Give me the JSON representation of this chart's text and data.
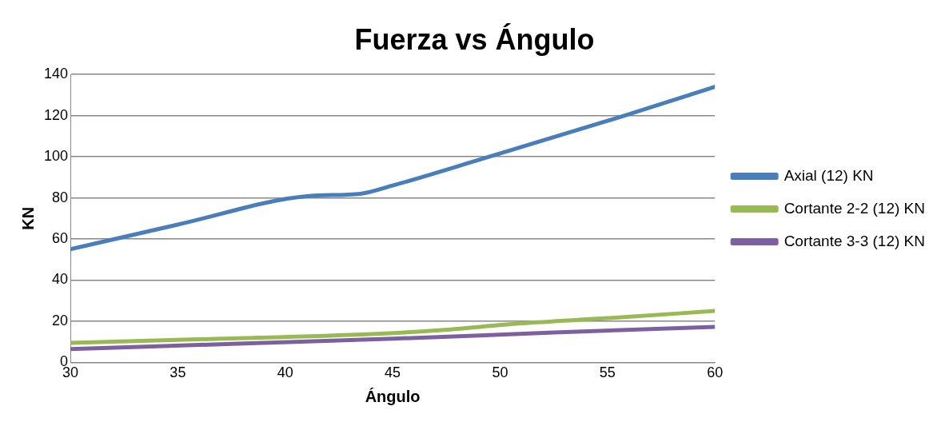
{
  "chart_data": {
    "type": "line",
    "title": "Fuerza vs Ángulo",
    "xlabel": "Ángulo",
    "ylabel": "KN",
    "xlim": [
      30,
      60
    ],
    "xticks": [
      30,
      35,
      40,
      45,
      50,
      55,
      60
    ],
    "ylim": [
      0,
      140
    ],
    "yticks": [
      0,
      20,
      40,
      60,
      80,
      100,
      120,
      140
    ],
    "grid": "y",
    "legend": "right",
    "marker": "none",
    "line_style": "solid",
    "series": [
      {
        "name": "Axial (12) KN",
        "color": "#4a7ebb",
        "x": [
          30,
          35,
          41,
          43.5,
          45,
          49.3,
          55.8,
          60
        ],
        "values": [
          55,
          67,
          80.8,
          82,
          86,
          99.4,
          120,
          134
        ]
      },
      {
        "name": "Cortante 2-2 (12) KN",
        "color": "#98b954",
        "x": [
          30,
          37,
          44,
          47,
          51,
          55,
          60
        ],
        "values": [
          9.5,
          11.5,
          13.8,
          15.5,
          19,
          21.5,
          25
        ]
      },
      {
        "name": "Cortante 3-3 (12) KN",
        "color": "#7d60a0",
        "x": [
          30,
          37.5,
          45,
          52.5,
          60
        ],
        "values": [
          6.5,
          9,
          11.5,
          14.5,
          17.3
        ]
      }
    ]
  }
}
